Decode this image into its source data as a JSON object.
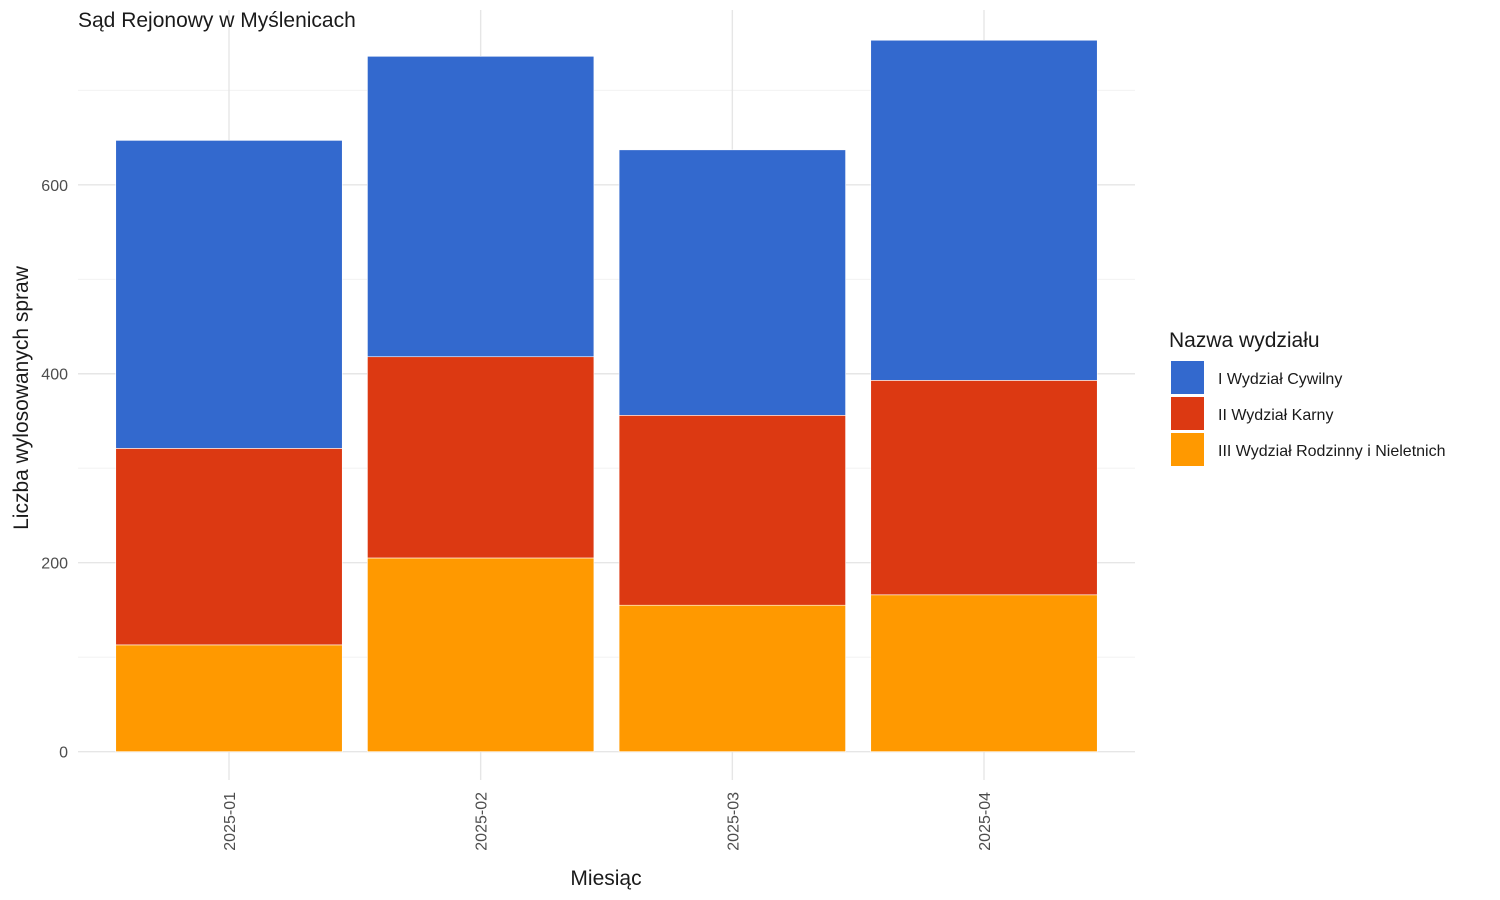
{
  "chart_data": {
    "type": "bar",
    "stacked": true,
    "title": "Sąd Rejonowy w Myślenicach",
    "xlabel": "Miesiąc",
    "ylabel": "Liczba wylosowanych spraw",
    "categories": [
      "2025-01",
      "2025-02",
      "2025-03",
      "2025-04"
    ],
    "yticks": [
      0,
      200,
      400,
      600
    ],
    "ylim": [
      -30,
      785
    ],
    "grid": true,
    "legend": {
      "title": "Nazwa wydziału",
      "placement": "right"
    },
    "series": [
      {
        "name": "I Wydział Cywilny",
        "color": "#3369CE",
        "values": [
          326,
          318,
          281,
          360
        ]
      },
      {
        "name": "II Wydział Karny",
        "color": "#DC3912",
        "values": [
          208,
          213,
          201,
          227
        ]
      },
      {
        "name": "III Wydział Rodzinny i Nieletnich",
        "color": "#FF9900",
        "values": [
          113,
          205,
          155,
          166
        ]
      }
    ]
  }
}
